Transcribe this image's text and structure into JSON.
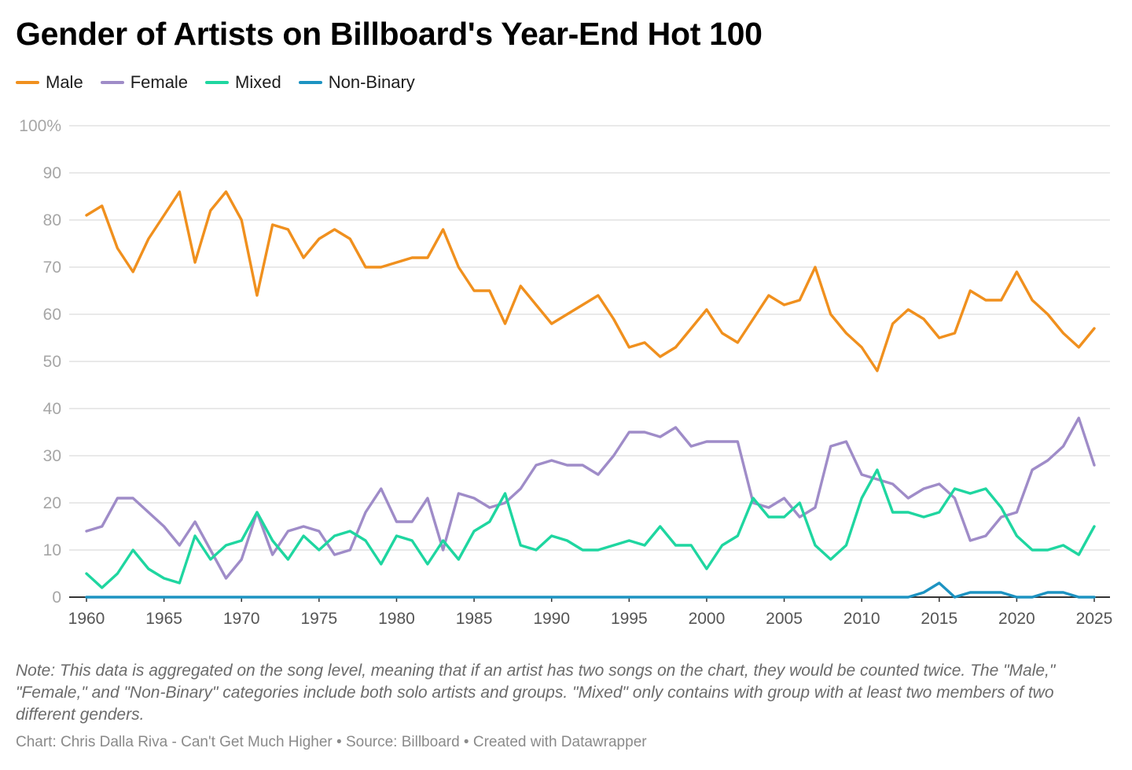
{
  "title": "Gender of Artists on Billboard's Year-End Hot 100",
  "legend": [
    {
      "label": "Male",
      "color": "#f0901e"
    },
    {
      "label": "Female",
      "color": "#9f8cc8"
    },
    {
      "label": "Mixed",
      "color": "#1fd6a0"
    },
    {
      "label": "Non-Binary",
      "color": "#1d93c2"
    }
  ],
  "note": "Note: This data is aggregated on the song level, meaning that if an artist has two songs on the chart, they would be counted twice. The \"Male,\" \"Female,\" and \"Non-Binary\" categories include both solo artists and groups. \"Mixed\" only contains with group with at least two members of two different genders.",
  "credits": "Chart: Chris Dalla Riva - Can't Get Much Higher • Source: Billboard • Created with Datawrapper",
  "chart_data": {
    "type": "line",
    "title": "Gender of Artists on Billboard's Year-End Hot 100",
    "xlabel": "",
    "ylabel": "",
    "xlim": [
      1960,
      2025
    ],
    "ylim": [
      0,
      100
    ],
    "x_ticks": [
      1960,
      1965,
      1970,
      1975,
      1980,
      1985,
      1990,
      1995,
      2000,
      2005,
      2010,
      2015,
      2020,
      2025
    ],
    "y_ticks": [
      {
        "value": 0,
        "label": "0"
      },
      {
        "value": 10,
        "label": "10"
      },
      {
        "value": 20,
        "label": "20"
      },
      {
        "value": 30,
        "label": "30"
      },
      {
        "value": 40,
        "label": "40"
      },
      {
        "value": 50,
        "label": "50"
      },
      {
        "value": 60,
        "label": "60"
      },
      {
        "value": 70,
        "label": "70"
      },
      {
        "value": 80,
        "label": "80"
      },
      {
        "value": 90,
        "label": "90"
      },
      {
        "value": 100,
        "label": "100%"
      }
    ],
    "grid": true,
    "legend_position": "top-left",
    "x": [
      1960,
      1961,
      1962,
      1963,
      1964,
      1965,
      1966,
      1967,
      1968,
      1969,
      1970,
      1971,
      1972,
      1973,
      1974,
      1975,
      1976,
      1977,
      1978,
      1979,
      1980,
      1981,
      1982,
      1983,
      1984,
      1985,
      1986,
      1987,
      1988,
      1989,
      1990,
      1991,
      1992,
      1993,
      1994,
      1995,
      1996,
      1997,
      1998,
      1999,
      2000,
      2001,
      2002,
      2003,
      2004,
      2005,
      2006,
      2007,
      2008,
      2009,
      2010,
      2011,
      2012,
      2013,
      2014,
      2015,
      2016,
      2017,
      2018,
      2019,
      2020,
      2021,
      2022,
      2023,
      2024,
      2025
    ],
    "series": [
      {
        "name": "Male",
        "color": "#f0901e",
        "values": [
          81,
          83,
          74,
          69,
          76,
          81,
          86,
          71,
          82,
          86,
          80,
          64,
          79,
          78,
          72,
          76,
          78,
          76,
          70,
          70,
          71,
          72,
          72,
          78,
          70,
          65,
          65,
          58,
          66,
          62,
          58,
          60,
          62,
          64,
          59,
          53,
          54,
          51,
          53,
          57,
          61,
          56,
          54,
          59,
          64,
          62,
          63,
          70,
          60,
          56,
          53,
          48,
          58,
          61,
          59,
          55,
          56,
          65,
          63,
          63,
          69,
          63,
          60,
          56,
          53,
          57
        ]
      },
      {
        "name": "Female",
        "color": "#9f8cc8",
        "values": [
          14,
          15,
          21,
          21,
          18,
          15,
          11,
          16,
          10,
          4,
          8,
          18,
          9,
          14,
          15,
          14,
          9,
          10,
          18,
          23,
          16,
          16,
          21,
          10,
          22,
          21,
          19,
          20,
          23,
          28,
          29,
          28,
          28,
          26,
          30,
          35,
          35,
          34,
          36,
          32,
          33,
          33,
          33,
          20,
          19,
          21,
          17,
          19,
          32,
          33,
          26,
          25,
          24,
          21,
          23,
          24,
          21,
          12,
          13,
          17,
          18,
          27,
          29,
          32,
          38,
          28
        ]
      },
      {
        "name": "Mixed",
        "color": "#1fd6a0",
        "values": [
          5,
          2,
          5,
          10,
          6,
          4,
          3,
          13,
          8,
          11,
          12,
          18,
          12,
          8,
          13,
          10,
          13,
          14,
          12,
          7,
          13,
          12,
          7,
          12,
          8,
          14,
          16,
          22,
          11,
          10,
          13,
          12,
          10,
          10,
          11,
          12,
          11,
          15,
          11,
          11,
          6,
          11,
          13,
          21,
          17,
          17,
          20,
          11,
          8,
          11,
          21,
          27,
          18,
          18,
          17,
          18,
          23,
          22,
          23,
          19,
          13,
          10,
          10,
          11,
          9,
          15
        ]
      },
      {
        "name": "Non-Binary",
        "color": "#1d93c2",
        "values": [
          0,
          0,
          0,
          0,
          0,
          0,
          0,
          0,
          0,
          0,
          0,
          0,
          0,
          0,
          0,
          0,
          0,
          0,
          0,
          0,
          0,
          0,
          0,
          0,
          0,
          0,
          0,
          0,
          0,
          0,
          0,
          0,
          0,
          0,
          0,
          0,
          0,
          0,
          0,
          0,
          0,
          0,
          0,
          0,
          0,
          0,
          0,
          0,
          0,
          0,
          0,
          0,
          0,
          0,
          1,
          3,
          0,
          1,
          1,
          1,
          0,
          0,
          1,
          1,
          0,
          0
        ]
      }
    ]
  }
}
